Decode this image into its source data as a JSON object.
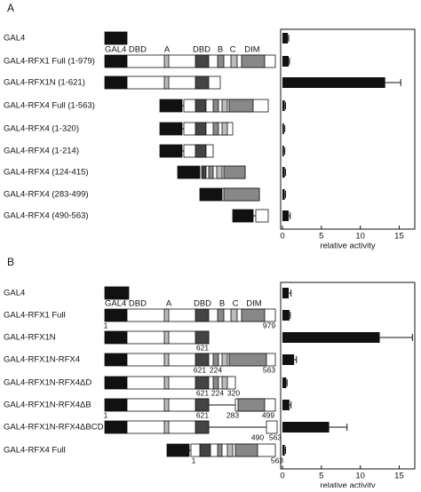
{
  "chart_data": [
    {
      "panel": "A",
      "type": "bar",
      "orientation": "horizontal",
      "categories": [
        "GAL4",
        "GAL4-RFX1 Full (1-979)",
        "GAL4-RFX1N (1-621)",
        "GAL4-RFX4 Full (1-563)",
        "GAL4-RFX4 (1-320)",
        "GAL4-RFX4 (1-214)",
        "GAL4-RFX4 (124-415)",
        "GAL4-RFX4 (283-499)",
        "GAL4-RFX4 (490-563)"
      ],
      "values": [
        0.7,
        0.8,
        13.2,
        0.3,
        0.2,
        0.2,
        0.3,
        0.3,
        0.8
      ],
      "errors": [
        0.1,
        0.1,
        2.0,
        0.1,
        0.1,
        0.1,
        0.1,
        0.1,
        0.2
      ],
      "color": "#111111",
      "xlim": [
        0,
        17
      ],
      "xticks": [
        0,
        5,
        10,
        15
      ],
      "xlabel": "relative activity",
      "diagram_labels": [
        "GAL4 DBD",
        "A",
        "DBD",
        "B",
        "C",
        "DIM"
      ]
    },
    {
      "panel": "B",
      "type": "bar",
      "orientation": "horizontal",
      "categories": [
        "GAL4",
        "GAL4-RFX1 Full",
        "GAL4-RFX1N",
        "GAL4-RFX1N-RFX4",
        "GAL4-RFX1N-RFX4ΔD",
        "GAL4-RFX1N-RFX4ΔB",
        "GAL4-RFX1N-RFX4ΔBCD",
        "GAL4-RFX4 Full"
      ],
      "values": [
        0.8,
        0.9,
        12.5,
        1.5,
        0.5,
        0.9,
        6.0,
        0.3
      ],
      "errors": [
        0.3,
        0.1,
        4.2,
        0.3,
        0.1,
        0.2,
        2.3,
        0.1
      ],
      "color": "#111111",
      "xlim": [
        0,
        17
      ],
      "xticks": [
        0,
        5,
        10,
        15
      ],
      "xlabel": "relative activity",
      "diagram_labels": [
        "GAL4 DBD",
        "A",
        "DBD",
        "B",
        "C",
        "DIM"
      ],
      "position_labels": [
        [],
        [
          "1",
          "979"
        ],
        [
          "621"
        ],
        [
          "621",
          "224",
          "563"
        ],
        [
          "621",
          "224",
          "320"
        ],
        [
          "1",
          "621",
          "283",
          "499"
        ],
        [
          "490",
          "563"
        ],
        [
          "1",
          "563"
        ]
      ]
    }
  ]
}
